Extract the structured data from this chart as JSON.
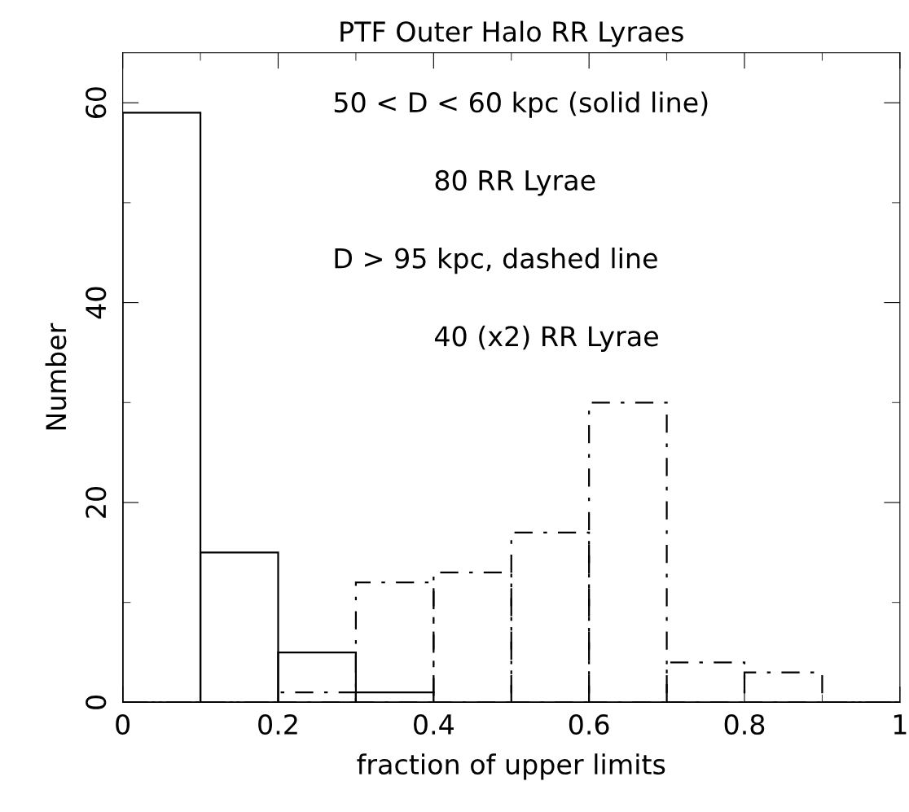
{
  "chart_data": {
    "type": "histogram",
    "title": "PTF Outer Halo RR Lyraes",
    "xlabel": "fraction of upper limits",
    "ylabel": "Number",
    "bins": [
      0,
      0.1,
      0.2,
      0.3,
      0.4,
      0.5,
      0.6,
      0.7,
      0.8,
      0.9,
      1.0
    ],
    "series": [
      {
        "color": "#000000",
        "line_style": "solid",
        "values": [
          59,
          15,
          5,
          1,
          0,
          0,
          0,
          0,
          0,
          0
        ]
      },
      {
        "color": "#000000",
        "line_style": "dashed",
        "values": [
          0,
          0,
          1,
          12,
          13,
          17,
          30,
          4,
          3,
          0
        ]
      }
    ],
    "xlim": [
      0,
      1
    ],
    "ylim": [
      0,
      65
    ],
    "xticks": [
      0,
      0.2,
      0.4,
      0.6,
      0.8,
      1
    ],
    "yticks": [
      0,
      20,
      40,
      60
    ],
    "grid": false,
    "legend": false,
    "annotations": [
      "50 < D < 60 kpc (solid line)",
      "80 RR Lyrae",
      "D > 95 kpc, dashed line",
      "40 (x2) RR Lyrae"
    ]
  }
}
